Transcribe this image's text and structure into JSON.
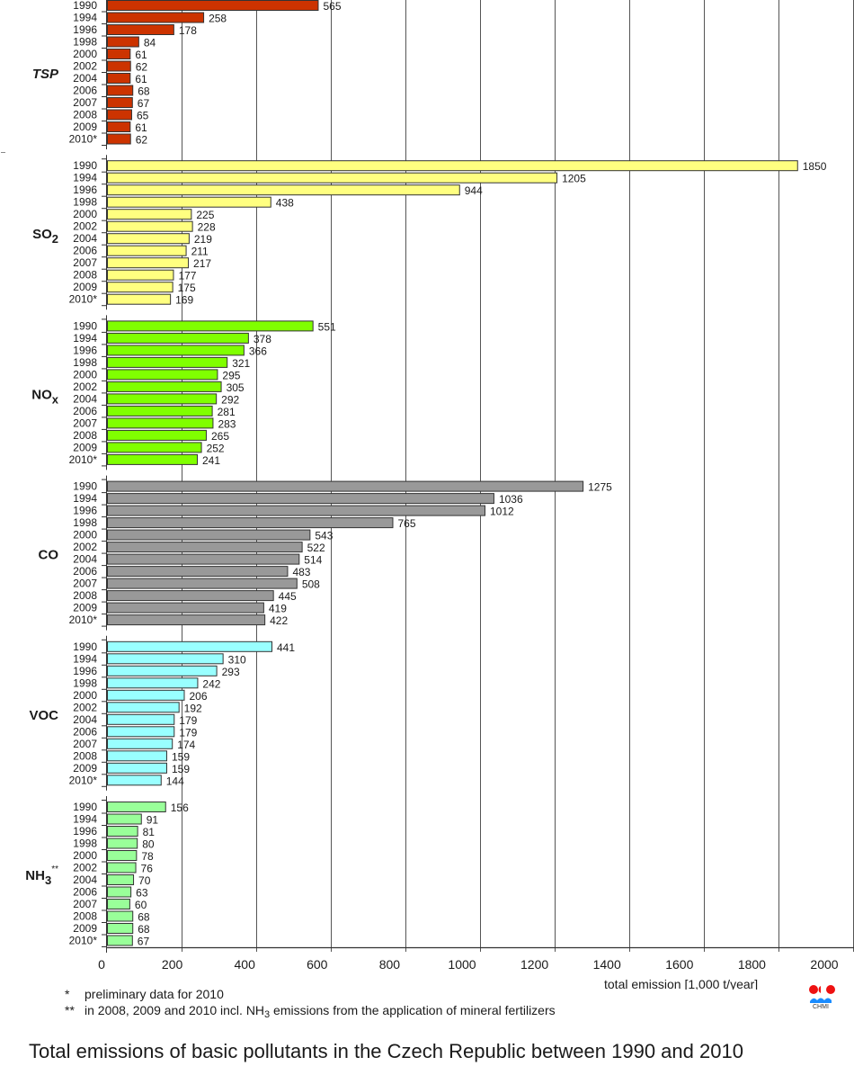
{
  "chart_data": {
    "type": "bar",
    "orientation": "horizontal",
    "title": "Total emissions of basic pollutants in the Czech Republic between 1990 and 2010",
    "xlabel": "total emission [1,000 t/year]",
    "ylabel": "",
    "xlim": [
      0,
      2000
    ],
    "xticks": [
      0,
      200,
      400,
      600,
      800,
      1000,
      1200,
      1400,
      1600,
      1800,
      2000
    ],
    "xtick_labels": [
      "0",
      "200",
      "400",
      "600",
      "800",
      "1000",
      "1200",
      "1400",
      "1600",
      "1800",
      "2000"
    ],
    "grid": "vertical",
    "categories": [
      "1990",
      "1994",
      "1996",
      "1998",
      "2000",
      "2002",
      "2004",
      "2006",
      "2007",
      "2008",
      "2009",
      "2010*"
    ],
    "series": [
      {
        "name": "TSP",
        "label_main": "TSP",
        "label_sub": "",
        "label_sup": "",
        "italic": true,
        "color": "#cc3300",
        "values": [
          565,
          258,
          178,
          84,
          61,
          62,
          61,
          68,
          67,
          65,
          61,
          62
        ]
      },
      {
        "name": "SO2",
        "label_main": "SO",
        "label_sub": "2",
        "label_sup": "",
        "italic": false,
        "color": "#ffff80",
        "values": [
          1850,
          1205,
          944,
          438,
          225,
          228,
          219,
          211,
          217,
          177,
          175,
          169
        ]
      },
      {
        "name": "NOx",
        "label_main": "NO",
        "label_sub": "x",
        "label_sup": "",
        "italic": false,
        "color": "#80ff00",
        "values": [
          551,
          378,
          366,
          321,
          295,
          305,
          292,
          281,
          283,
          265,
          252,
          241
        ]
      },
      {
        "name": "CO",
        "label_main": "CO",
        "label_sub": "",
        "label_sup": "",
        "italic": false,
        "color": "#999999",
        "values": [
          1275,
          1036,
          1012,
          765,
          543,
          522,
          514,
          483,
          508,
          445,
          419,
          422
        ]
      },
      {
        "name": "VOC",
        "label_main": "VOC",
        "label_sub": "",
        "label_sup": "",
        "italic": false,
        "color": "#99ffff",
        "values": [
          441,
          310,
          293,
          242,
          206,
          192,
          179,
          179,
          174,
          159,
          159,
          144
        ]
      },
      {
        "name": "NH3**",
        "label_main": "NH",
        "label_sub": "3",
        "label_sup": "**",
        "italic": false,
        "color": "#99ff99",
        "values": [
          156,
          91,
          81,
          80,
          78,
          76,
          70,
          63,
          60,
          68,
          68,
          67
        ]
      }
    ]
  },
  "footnotes": {
    "note1_mark": "*",
    "note1_text": "preliminary data for 2010",
    "note2_mark": "**",
    "note2_text_before": "in 2008, 2009 and 2010 incl. NH",
    "note2_sub": "3",
    "note2_text_after": " emissions from the application of mineral fertilizers"
  },
  "logo": {
    "name": "CHMI",
    "caption": "CHMI",
    "dot_color": "#ee1111",
    "wave_color": "#1a8cff"
  }
}
